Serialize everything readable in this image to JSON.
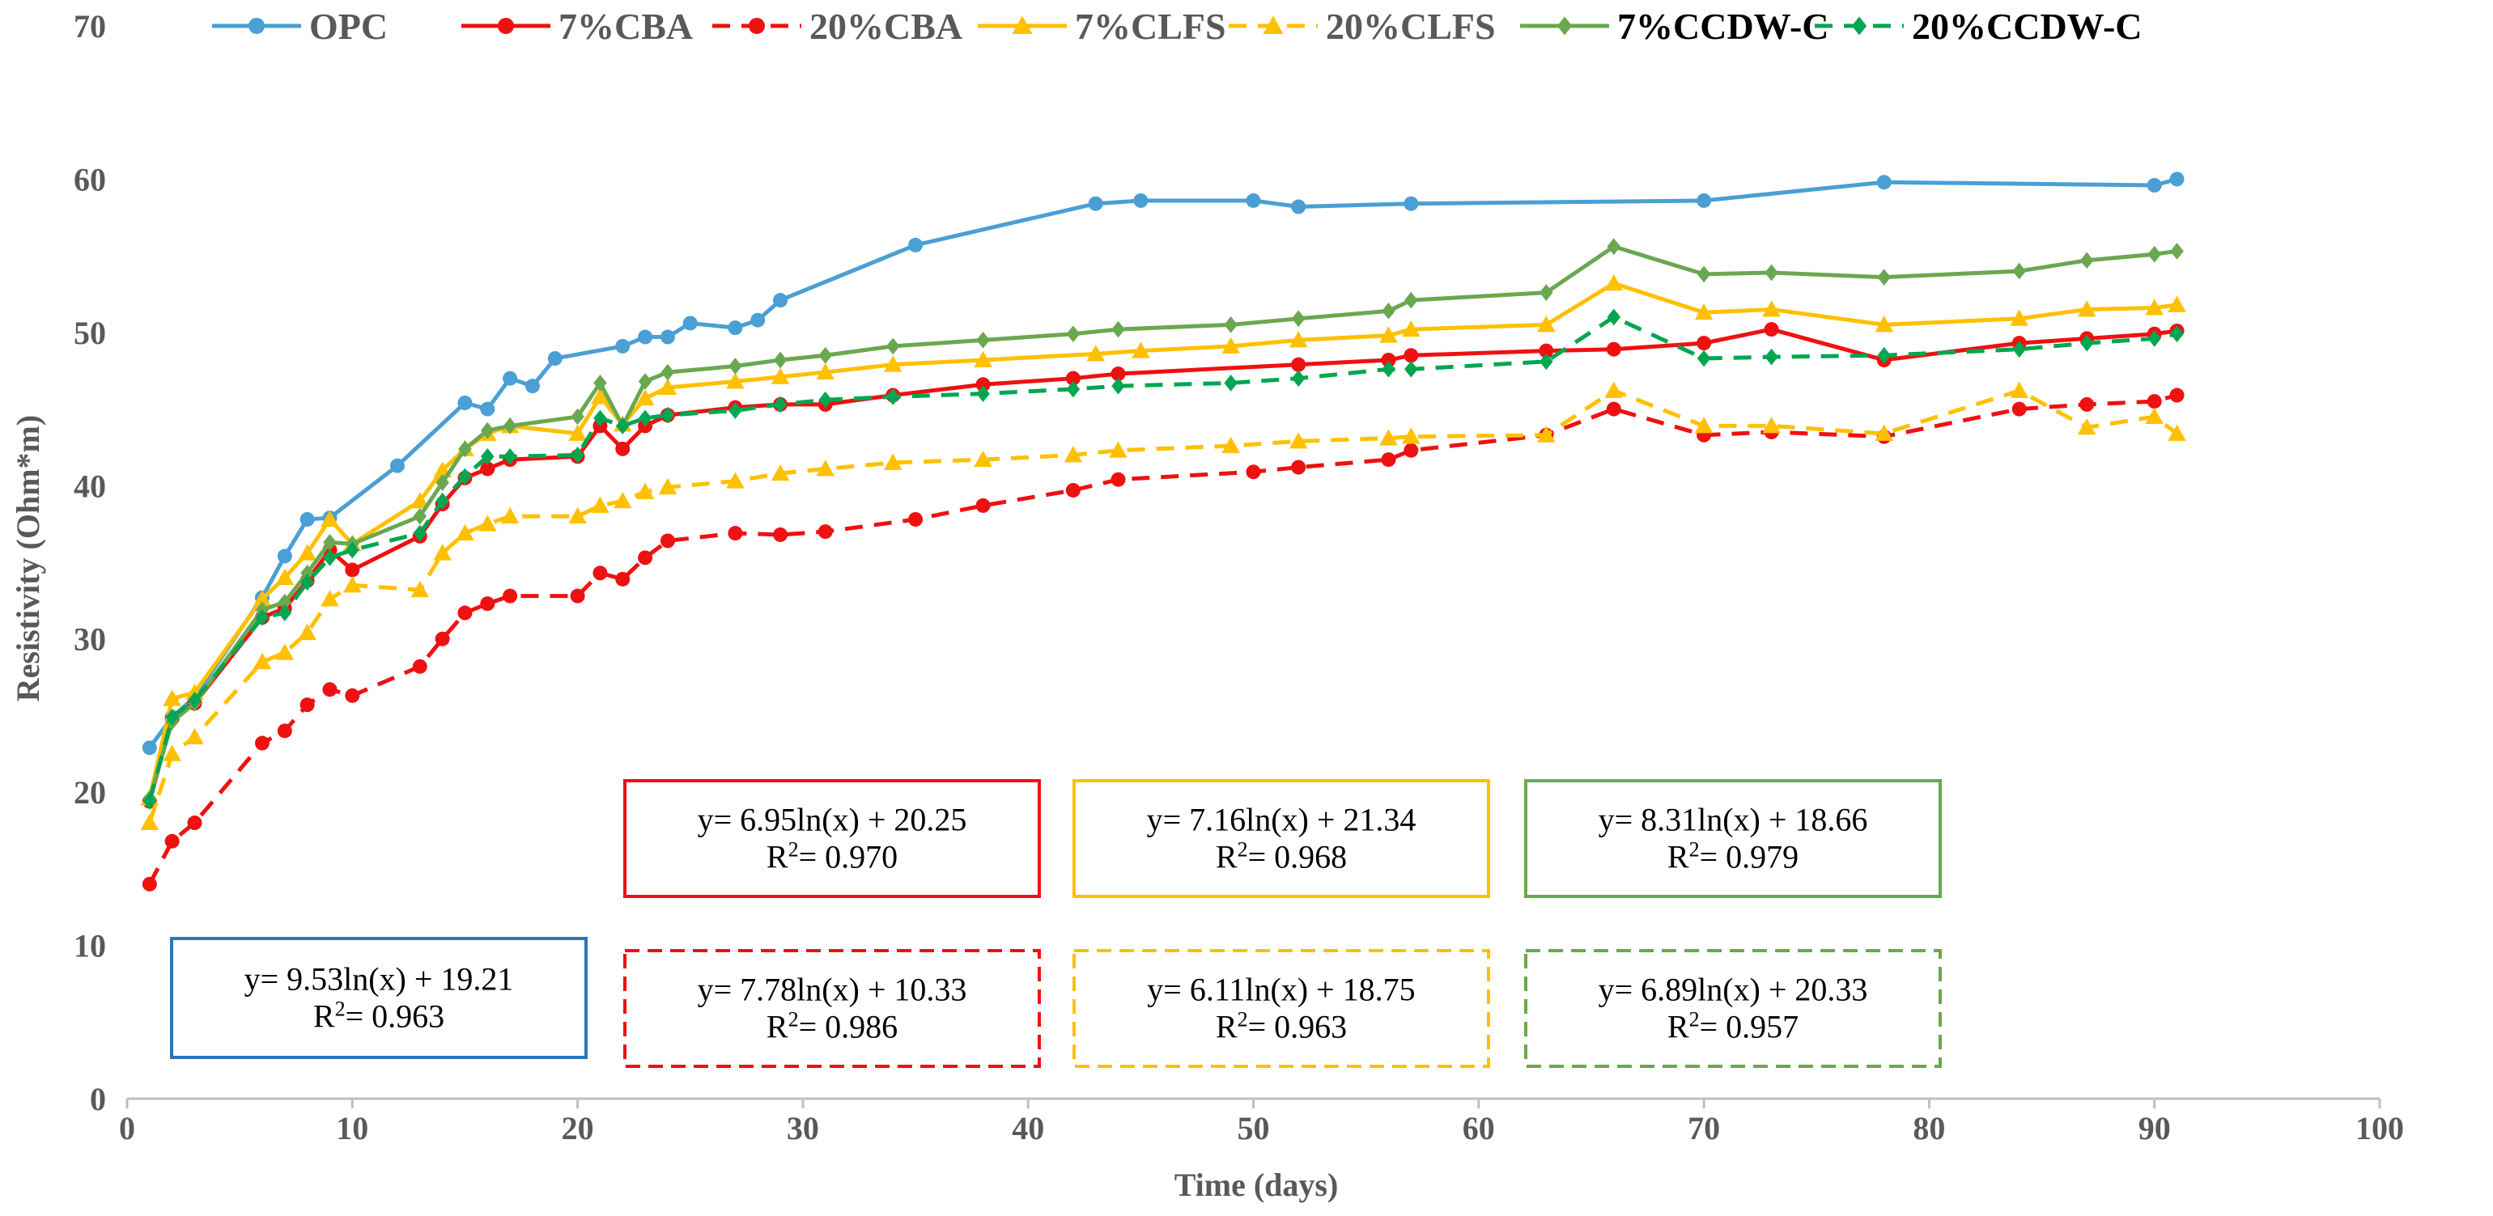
{
  "chart_data": {
    "type": "line",
    "title": "",
    "xlabel": "Time (days)",
    "ylabel": "Resistivity (Ohm*m)",
    "xlim": [
      0,
      100
    ],
    "ylim": [
      0,
      70
    ],
    "x_ticks": [
      "0",
      "10",
      "20",
      "30",
      "40",
      "50",
      "60",
      "70",
      "80",
      "90",
      "100"
    ],
    "y_ticks": [
      "0",
      "10",
      "20",
      "30",
      "40",
      "50",
      "60",
      "70"
    ],
    "legend_position": "top",
    "series": [
      {
        "name": "OPC",
        "color": "#4a9fd4",
        "dash": false,
        "marker": "circle",
        "x": [
          1,
          2,
          3,
          6,
          7,
          8,
          9,
          12,
          15,
          16,
          17,
          18,
          19,
          22,
          23,
          24,
          25,
          27,
          28,
          29,
          35,
          43,
          45,
          50,
          52,
          57,
          70,
          78,
          90,
          91
        ],
        "y": [
          22.9,
          24.9,
          26.2,
          32.7,
          35.4,
          37.8,
          37.9,
          41.3,
          45.4,
          45.0,
          47.0,
          46.5,
          48.3,
          49.1,
          49.7,
          49.7,
          50.6,
          50.3,
          50.8,
          52.1,
          55.7,
          58.4,
          58.6,
          58.6,
          58.2,
          58.4,
          58.6,
          59.8,
          59.6,
          60.0
        ]
      },
      {
        "name": "7%CBA",
        "color": "#ee1111",
        "dash": false,
        "marker": "circle",
        "x": [
          1,
          2,
          3,
          6,
          7,
          8,
          9,
          10,
          13,
          14,
          15,
          16,
          17,
          20,
          21,
          22,
          23,
          24,
          27,
          29,
          31,
          34,
          38,
          42,
          44,
          52,
          56,
          57,
          63,
          66,
          70,
          73,
          78,
          84,
          87,
          90,
          91
        ],
        "y": [
          19.4,
          24.8,
          25.8,
          31.4,
          32.0,
          33.8,
          35.8,
          34.5,
          36.7,
          38.8,
          40.5,
          41.1,
          41.7,
          41.9,
          43.9,
          42.4,
          43.9,
          44.6,
          45.1,
          45.3,
          45.3,
          45.9,
          46.6,
          47.0,
          47.3,
          47.9,
          48.2,
          48.5,
          48.8,
          48.9,
          49.3,
          50.2,
          48.2,
          49.3,
          49.6,
          49.9,
          50.1
        ]
      },
      {
        "name": "20%CBA",
        "color": "#ee1111",
        "dash": true,
        "marker": "circle",
        "x": [
          1,
          2,
          3,
          6,
          7,
          8,
          9,
          10,
          13,
          14,
          15,
          16,
          17,
          20,
          21,
          22,
          23,
          24,
          27,
          29,
          31,
          35,
          38,
          42,
          44,
          50,
          52,
          56,
          57,
          63,
          66,
          70,
          73,
          78,
          84,
          87,
          90,
          91
        ],
        "y": [
          14.0,
          16.8,
          18.0,
          23.2,
          24.0,
          25.7,
          26.7,
          26.3,
          28.2,
          30.0,
          31.7,
          32.3,
          32.8,
          32.8,
          34.3,
          33.9,
          35.3,
          36.4,
          36.9,
          36.8,
          37.0,
          37.8,
          38.7,
          39.7,
          40.4,
          40.9,
          41.2,
          41.7,
          42.3,
          43.3,
          45.0,
          43.3,
          43.5,
          43.2,
          45.0,
          45.3,
          45.5,
          45.9
        ]
      },
      {
        "name": "7%CLFS",
        "color": "#ffc000",
        "dash": false,
        "marker": "triangle",
        "x": [
          1,
          2,
          3,
          6,
          7,
          8,
          9,
          10,
          13,
          14,
          15,
          16,
          17,
          20,
          21,
          22,
          23,
          24,
          27,
          29,
          31,
          34,
          38,
          43,
          45,
          49,
          52,
          56,
          57,
          63,
          66,
          70,
          73,
          78,
          84,
          87,
          90,
          91
        ],
        "y": [
          19.6,
          26.1,
          26.5,
          32.6,
          34.0,
          35.6,
          37.8,
          36.2,
          39.0,
          41.0,
          42.4,
          43.4,
          43.9,
          43.4,
          45.8,
          44.0,
          45.7,
          46.4,
          46.8,
          47.1,
          47.4,
          47.9,
          48.2,
          48.6,
          48.8,
          49.1,
          49.5,
          49.8,
          50.2,
          50.5,
          53.2,
          51.3,
          51.5,
          50.5,
          50.9,
          51.5,
          51.6,
          51.8
        ]
      },
      {
        "name": "20%CLFS",
        "color": "#ffc000",
        "dash": true,
        "marker": "triangle",
        "x": [
          1,
          2,
          3,
          6,
          7,
          8,
          9,
          10,
          13,
          14,
          15,
          16,
          17,
          20,
          21,
          22,
          23,
          24,
          27,
          29,
          31,
          34,
          38,
          42,
          44,
          49,
          52,
          56,
          57,
          63,
          66,
          70,
          73,
          78,
          84,
          87,
          90,
          91
        ],
        "y": [
          18.0,
          22.5,
          23.6,
          28.5,
          29.1,
          30.4,
          32.6,
          33.5,
          33.2,
          35.6,
          36.9,
          37.5,
          38.0,
          38.0,
          38.7,
          39.0,
          39.6,
          39.9,
          40.3,
          40.8,
          41.1,
          41.5,
          41.7,
          42.0,
          42.3,
          42.6,
          42.9,
          43.1,
          43.2,
          43.3,
          46.2,
          43.9,
          43.9,
          43.4,
          46.2,
          43.8,
          44.5,
          43.4
        ]
      },
      {
        "name": "7%CCDW-C",
        "color": "#6aa84f",
        "dash": false,
        "marker": "diamond",
        "x": [
          1,
          2,
          3,
          6,
          7,
          8,
          9,
          10,
          13,
          14,
          15,
          16,
          17,
          20,
          21,
          22,
          23,
          24,
          27,
          29,
          31,
          34,
          38,
          42,
          44,
          49,
          52,
          56,
          57,
          63,
          66,
          70,
          73,
          78,
          84,
          87,
          90,
          91
        ],
        "y": [
          19.6,
          24.6,
          25.8,
          31.9,
          32.4,
          34.3,
          36.3,
          36.2,
          38.0,
          40.2,
          42.4,
          43.6,
          43.9,
          44.5,
          46.7,
          43.9,
          46.8,
          47.4,
          47.8,
          48.2,
          48.5,
          49.1,
          49.5,
          49.9,
          50.2,
          50.5,
          50.9,
          51.4,
          52.1,
          52.6,
          55.6,
          53.8,
          53.9,
          53.6,
          54.0,
          54.7,
          55.1,
          55.3
        ]
      },
      {
        "name": "20%CCDW-C",
        "color": "#00a651",
        "dash": true,
        "marker": "diamond",
        "x": [
          1,
          2,
          3,
          6,
          7,
          8,
          9,
          10,
          13,
          14,
          15,
          16,
          17,
          20,
          21,
          22,
          23,
          24,
          27,
          29,
          31,
          34,
          38,
          42,
          44,
          49,
          52,
          56,
          57,
          63,
          66,
          70,
          73,
          78,
          84,
          87,
          90,
          91
        ],
        "y": [
          19.4,
          24.9,
          26.0,
          31.4,
          31.7,
          33.7,
          35.3,
          35.8,
          36.9,
          39.0,
          40.6,
          41.9,
          41.9,
          42.0,
          44.4,
          43.9,
          44.4,
          44.6,
          44.9,
          45.3,
          45.6,
          45.8,
          46.0,
          46.3,
          46.5,
          46.7,
          47.0,
          47.6,
          47.6,
          48.1,
          51.0,
          48.3,
          48.4,
          48.5,
          48.9,
          49.3,
          49.6,
          49.9
        ]
      }
    ],
    "annotations": [
      {
        "series": "OPC",
        "equation": "y= 9.53ln(x) + 19.21",
        "r2_label": "R",
        "r2_sup": "2",
        "r2_value": "= 0.963",
        "color": "#2e75b6",
        "dash": false
      },
      {
        "series": "7%CBA",
        "equation": "y= 6.95ln(x) + 20.25",
        "r2_label": "R",
        "r2_sup": "2",
        "r2_value": "= 0.970",
        "color": "#ee1111",
        "dash": false
      },
      {
        "series": "7%CLFS",
        "equation": "y= 7.16ln(x) + 21.34",
        "r2_label": "R",
        "r2_sup": "2",
        "r2_value": "= 0.968",
        "color": "#ffc000",
        "dash": false
      },
      {
        "series": "7%CCDW-C",
        "equation": "y= 8.31ln(x) + 18.66",
        "r2_label": "R",
        "r2_sup": "2",
        "r2_value": "= 0.979",
        "color": "#6aa84f",
        "dash": false
      },
      {
        "series": "20%CBA",
        "equation": "y= 7.78ln(x) + 10.33",
        "r2_label": "R",
        "r2_sup": "2",
        "r2_value": "= 0.986",
        "color": "#ee1111",
        "dash": true
      },
      {
        "series": "20%CLFS",
        "equation": "y= 6.11ln(x) + 18.75",
        "r2_label": "R",
        "r2_sup": "2",
        "r2_value": "= 0.963",
        "color": "#ffc000",
        "dash": true
      },
      {
        "series": "20%CCDW-C",
        "equation": "y= 6.89ln(x) + 20.33",
        "r2_label": "R",
        "r2_sup": "2",
        "r2_value": "= 0.957",
        "color": "#6aa84f",
        "dash": true
      }
    ]
  }
}
